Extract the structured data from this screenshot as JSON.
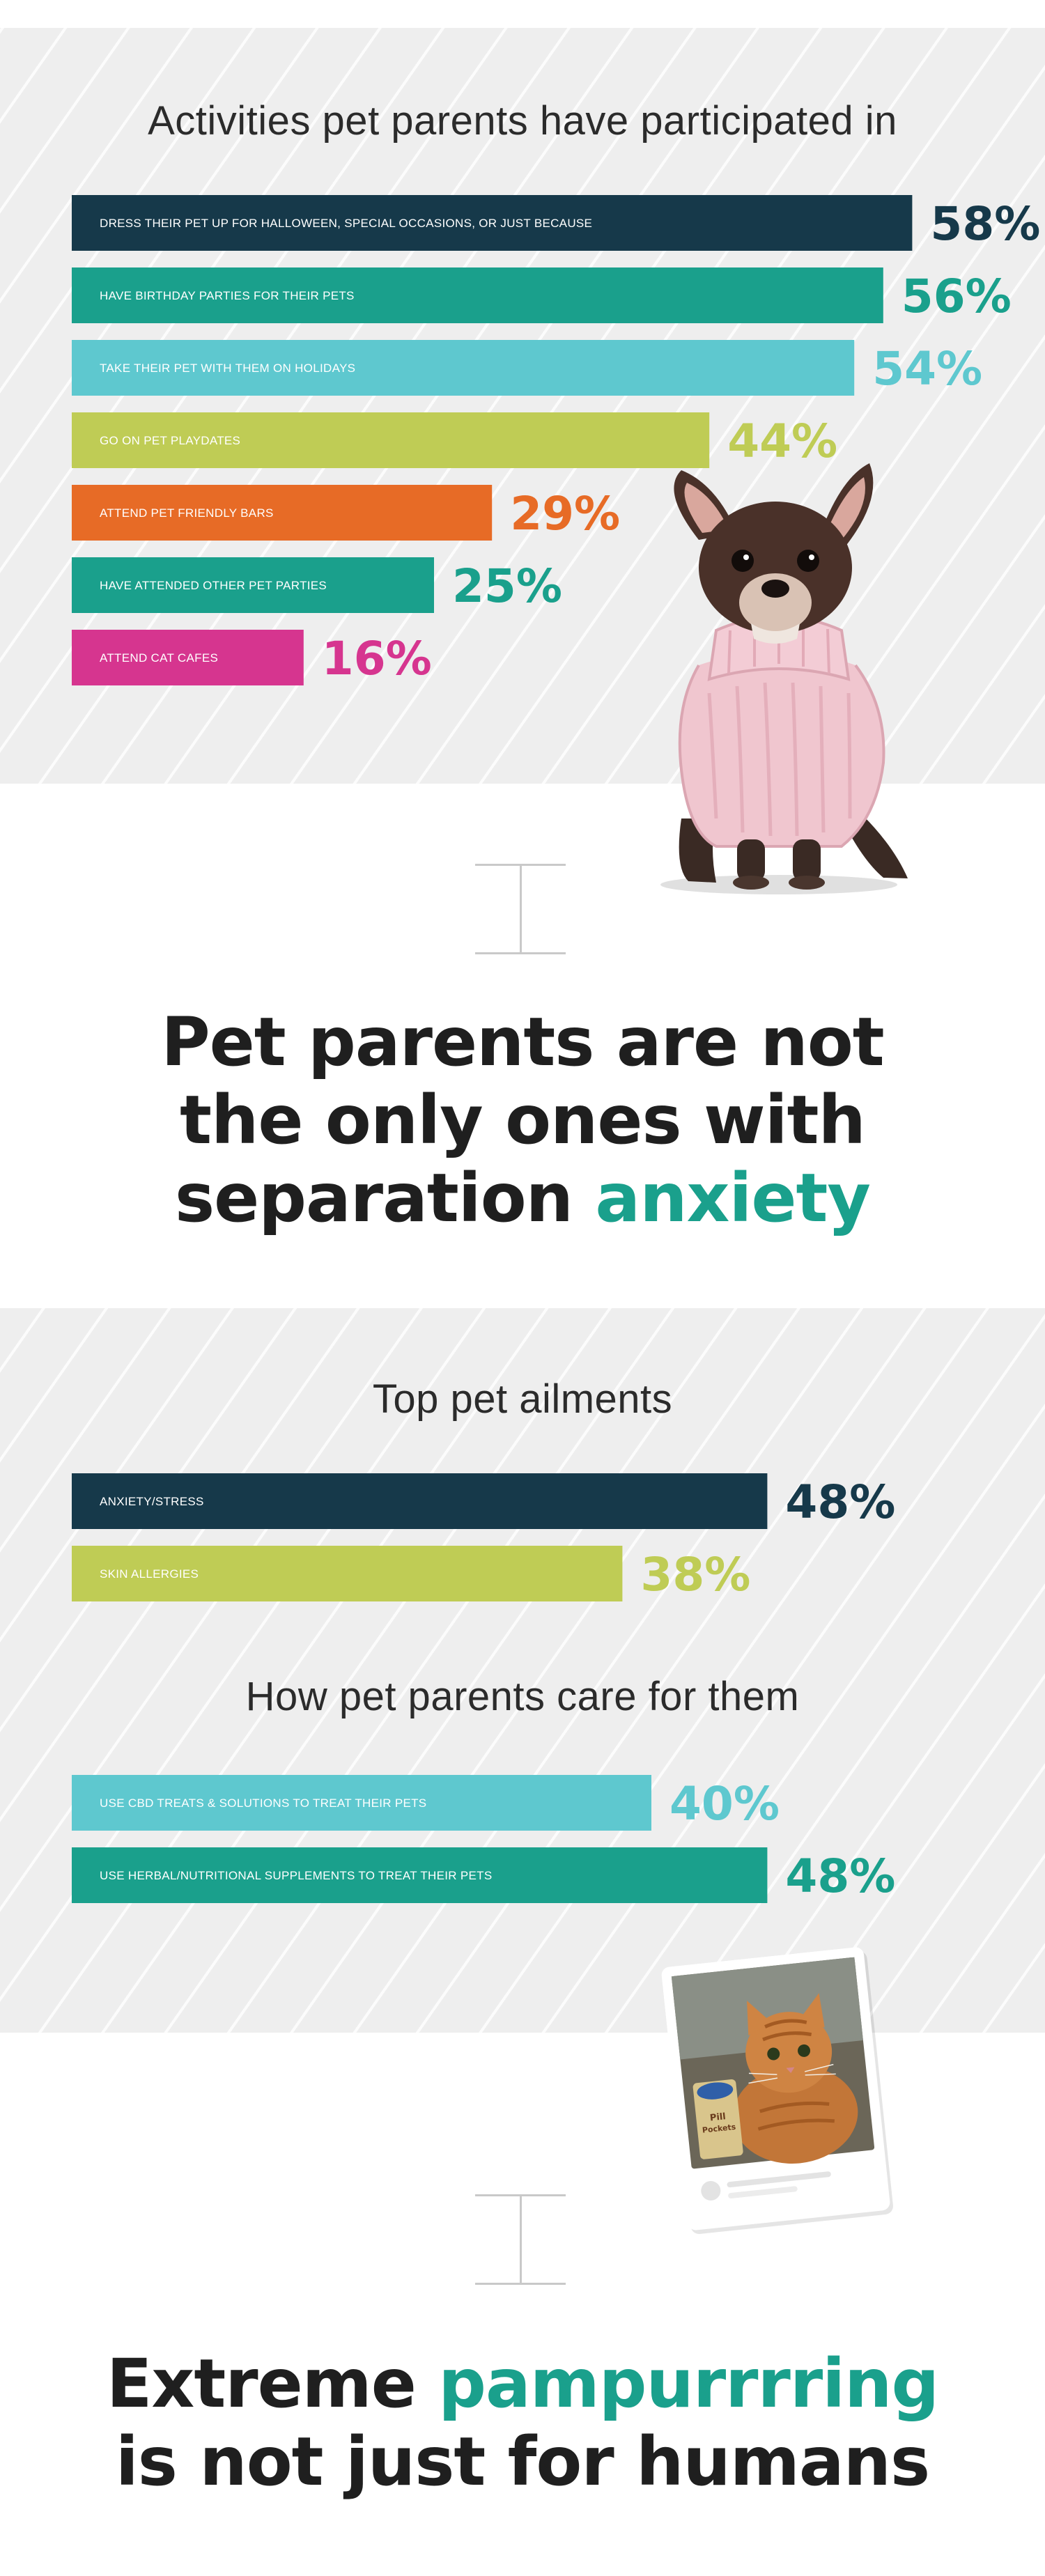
{
  "section1": {
    "title": "Activities pet parents have participated in"
  },
  "chart_data": [
    {
      "type": "bar",
      "orientation": "horizontal",
      "title": "Activities pet parents have participated in",
      "categories": [
        "DRESS THEIR PET UP FOR HALLOWEEN, SPECIAL OCCASIONS, OR JUST BECAUSE",
        "HAVE BIRTHDAY PARTIES FOR THEIR PETS",
        "TAKE THEIR PET WITH THEM ON HOLIDAYS",
        "GO ON PET PLAYDATES",
        "ATTEND PET FRIENDLY BARS",
        "HAVE ATTENDED OTHER PET PARTIES",
        "ATTEND CAT CAFES"
      ],
      "values": [
        58,
        56,
        54,
        44,
        29,
        25,
        16
      ],
      "value_labels": [
        "58%",
        "56%",
        "54%",
        "44%",
        "29%",
        "25%",
        "16%"
      ],
      "colors": [
        "#16394a",
        "#1aa08c",
        "#5ec8cf",
        "#bfcc55",
        "#e76b26",
        "#1aa08c",
        "#d6358f"
      ],
      "xlim": [
        0,
        100
      ]
    },
    {
      "type": "bar",
      "orientation": "horizontal",
      "title": "Top pet ailments",
      "categories": [
        "ANXIETY/STRESS",
        "SKIN ALLERGIES"
      ],
      "values": [
        48,
        38
      ],
      "value_labels": [
        "48%",
        "38%"
      ],
      "colors": [
        "#16394a",
        "#bfcc55"
      ],
      "xlim": [
        0,
        100
      ]
    },
    {
      "type": "bar",
      "orientation": "horizontal",
      "title": "How pet parents care for them",
      "categories": [
        "USE CBD TREATS & SOLUTIONS TO TREAT THEIR PETS",
        "USE HERBAL/NUTRITIONAL SUPPLEMENTS TO TREAT THEIR PETS"
      ],
      "values": [
        40,
        48
      ],
      "value_labels": [
        "40%",
        "48%"
      ],
      "colors": [
        "#5ec8cf",
        "#1aa08c"
      ],
      "xlim": [
        0,
        100
      ]
    }
  ],
  "headline1": {
    "line1": "Pet parents are not",
    "line2": "the only ones with",
    "line3_plain": "separation ",
    "line3_accent": "anxiety"
  },
  "section2": {
    "title_ailments": "Top pet ailments",
    "title_care": "How pet parents care for them"
  },
  "cat_card": {
    "product_text_1": "Pill",
    "product_text_2": "Pockets"
  },
  "headline2": {
    "line1_plain": "Extreme ",
    "line1_accent": "pampurrrring",
    "line2": "is not just for humans"
  },
  "colors": {
    "navy": "#16394a",
    "teal": "#1aa08c",
    "aqua": "#5ec8cf",
    "lime": "#bfcc55",
    "orange": "#e76b26",
    "magenta": "#d6358f",
    "accent": "#1aa08c"
  }
}
